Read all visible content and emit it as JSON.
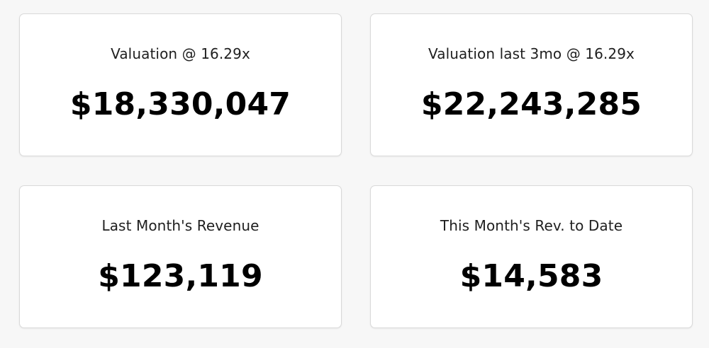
{
  "cards": [
    {
      "label": "Valuation @ 16.29x",
      "value": "$18,330,047"
    },
    {
      "label": "Valuation last 3mo @ 16.29x",
      "value": "$22,243,285"
    },
    {
      "label": "Last Month's Revenue",
      "value": "$123,119"
    },
    {
      "label": "This Month's Rev. to Date",
      "value": "$14,583"
    }
  ]
}
